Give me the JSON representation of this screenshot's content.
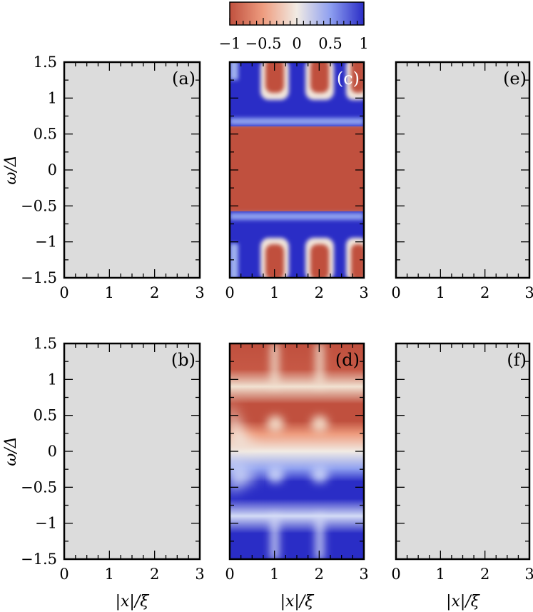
{
  "chart_data": {
    "type": "heatmap",
    "colorbar": {
      "range": [
        -1,
        1
      ],
      "tick_labels": [
        "−1",
        "−0.5",
        "0",
        "0.5",
        "1"
      ],
      "colormap": "coolwarm",
      "colors": {
        "low": "#c0503e",
        "mid": "#f1ebe4",
        "high": "#2a2dc6"
      }
    },
    "x_tick_labels": [
      "0",
      "1",
      "2",
      "3"
    ],
    "y_tick_labels": [
      "1.5",
      "1",
      "0.5",
      "0",
      "−0.5",
      "−1",
      "−1.5"
    ],
    "xlabel": "|x|/ξ",
    "ylabel": "ω/Δ",
    "xlim": [
      0,
      3
    ],
    "ylim": [
      -1.5,
      1.5
    ],
    "panels": [
      {
        "label": "(a)",
        "content": "empty",
        "background": "#dcdcdc"
      },
      {
        "label": "(b)",
        "content": "empty",
        "background": "#dcdcdc"
      },
      {
        "label": "(c)",
        "content": "heatmap",
        "description_values": {
          "gap_band": [
            -0.6,
            0.6
          ],
          "gap_value": -1,
          "band_value": 1,
          "bubble_x_centers": [
            0.95,
            1.95,
            2.85
          ]
        }
      },
      {
        "label": "(d)",
        "content": "heatmap",
        "description_values": {
          "sign_change_at": 0,
          "upper_value": -1,
          "lower_value": 1,
          "modulation_period_x": 1
        }
      },
      {
        "label": "(e)",
        "content": "empty",
        "background": "#dcdcdc"
      },
      {
        "label": "(f)",
        "content": "empty",
        "background": "#dcdcdc"
      }
    ]
  }
}
